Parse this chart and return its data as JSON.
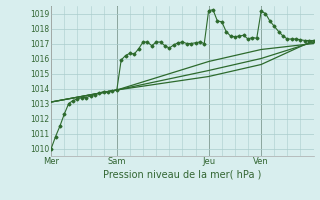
{
  "title": "",
  "xlabel": "Pression niveau de la mer( hPa )",
  "background_color": "#d8eeee",
  "grid_color": "#aacccc",
  "line_color": "#2d6a2d",
  "ylim": [
    1009.5,
    1019.5
  ],
  "xlim": [
    0,
    120
  ],
  "yticks": [
    1010,
    1011,
    1012,
    1013,
    1014,
    1015,
    1016,
    1017,
    1018,
    1019
  ],
  "day_labels": [
    "Mer",
    "Sam",
    "Jeu",
    "Ven"
  ],
  "day_positions": [
    0,
    30,
    72,
    96
  ],
  "series1_x": [
    0,
    2,
    4,
    6,
    8,
    10,
    12,
    14,
    16,
    18,
    20,
    22,
    24,
    26,
    28,
    30,
    32,
    34,
    36,
    38,
    40,
    42,
    44,
    46,
    48,
    50,
    52,
    54,
    56,
    58,
    60,
    62,
    64,
    66,
    68,
    70,
    72,
    74,
    76,
    78,
    80,
    82,
    84,
    86,
    88,
    90,
    92,
    94,
    96,
    98,
    100,
    102,
    104,
    106,
    108,
    110,
    112,
    114,
    116,
    118,
    120
  ],
  "series1_y": [
    1010.0,
    1010.8,
    1011.5,
    1012.3,
    1013.0,
    1013.2,
    1013.3,
    1013.4,
    1013.4,
    1013.5,
    1013.6,
    1013.7,
    1013.8,
    1013.8,
    1013.85,
    1013.9,
    1015.9,
    1016.2,
    1016.35,
    1016.3,
    1016.65,
    1017.1,
    1017.1,
    1016.85,
    1017.1,
    1017.1,
    1016.85,
    1016.7,
    1016.9,
    1017.05,
    1017.1,
    1017.0,
    1017.0,
    1017.05,
    1017.1,
    1017.0,
    1019.2,
    1019.25,
    1018.5,
    1018.45,
    1017.8,
    1017.5,
    1017.45,
    1017.5,
    1017.55,
    1017.3,
    1017.4,
    1017.35,
    1019.15,
    1019.0,
    1018.5,
    1018.15,
    1017.8,
    1017.5,
    1017.3,
    1017.3,
    1017.3,
    1017.25,
    1017.2,
    1017.2,
    1017.2
  ],
  "series2_x": [
    0,
    30,
    72,
    96,
    120
  ],
  "series2_y": [
    1013.1,
    1013.9,
    1015.8,
    1016.6,
    1017.0
  ],
  "series3_x": [
    0,
    30,
    72,
    96,
    120
  ],
  "series3_y": [
    1013.1,
    1013.9,
    1015.2,
    1016.0,
    1017.1
  ],
  "series4_x": [
    0,
    30,
    72,
    96,
    120
  ],
  "series4_y": [
    1013.1,
    1013.9,
    1014.8,
    1015.6,
    1017.2
  ],
  "vline_color": "#667766",
  "spine_color": "#aaaaaa",
  "tick_color": "#336633",
  "label_fontsize": 5.5,
  "xlabel_fontsize": 7.0,
  "xtick_fontsize": 6.0,
  "figsize": [
    3.2,
    2.0
  ],
  "dpi": 100
}
